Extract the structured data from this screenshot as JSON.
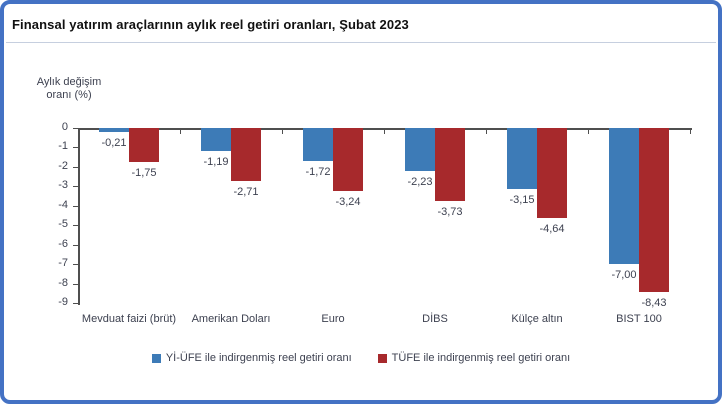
{
  "frame": {
    "border_color": "#4472c4",
    "background_color": "#ffffff"
  },
  "title": "Finansal yatırım araçlarının aylık reel getiri oranları, Şubat 2023",
  "y_axis_title": "Aylık değişim\noranı (%)",
  "chart_data": {
    "type": "bar",
    "title": "Finansal yatırım araçlarının aylık reel getiri oranları, Şubat 2023",
    "ylabel": "Aylık değişim oranı (%)",
    "xlabel": "",
    "categories": [
      "Mevduat faizi (brüt)",
      "Amerikan Doları",
      "Euro",
      "DİBS",
      "Külçe altın",
      "BIST 100"
    ],
    "series": [
      {
        "name": "Yİ-ÜFE ile indirgenmiş reel getiri oranı",
        "color": "#3d7bb7",
        "values": [
          -0.21,
          -1.19,
          -1.72,
          -2.23,
          -3.15,
          -7.0
        ],
        "value_labels": [
          "-0,21",
          "-1,19",
          "-1,72",
          "-2,23",
          "-3,15",
          "-7,00"
        ]
      },
      {
        "name": "TÜFE ile indirgenmiş reel getiri oranı",
        "color": "#a7292c",
        "values": [
          -1.75,
          -2.71,
          -3.24,
          -3.73,
          -4.64,
          -8.43
        ],
        "value_labels": [
          "-1,75",
          "-2,71",
          "-3,24",
          "-3,73",
          "-4,64",
          "-8,43"
        ]
      }
    ],
    "ylim": [
      0,
      -9
    ],
    "y_ticks": [
      0,
      -1,
      -2,
      -3,
      -4,
      -5,
      -6,
      -7,
      -8,
      -9
    ],
    "grid": false,
    "legend_position": "bottom",
    "decimal_separator": ","
  }
}
